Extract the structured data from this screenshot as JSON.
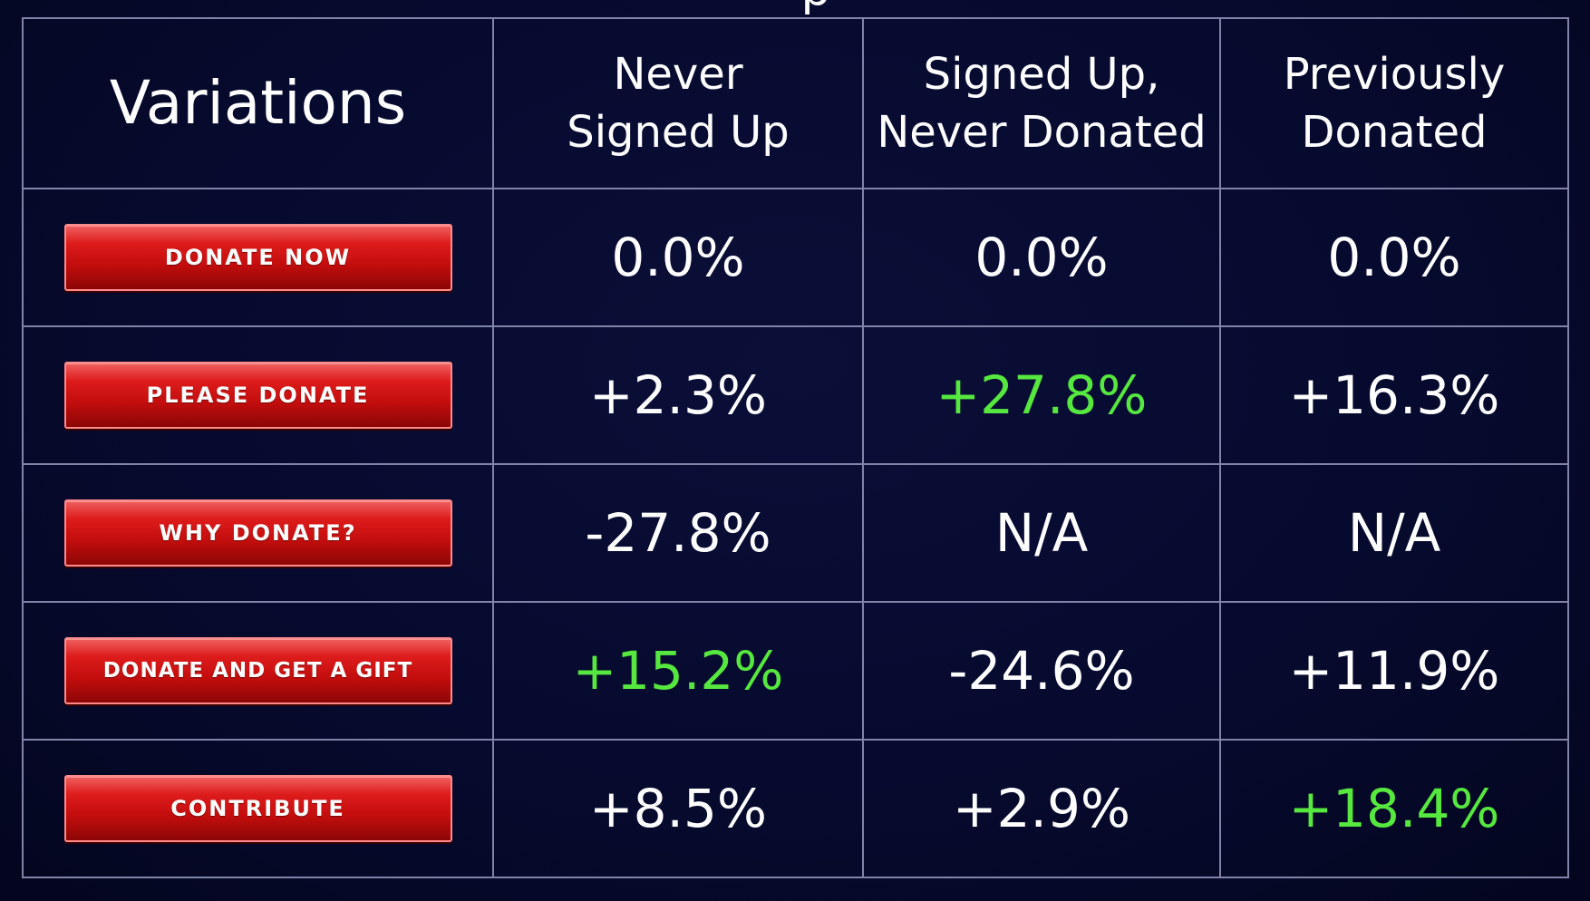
{
  "slide": {
    "title_fragment": "p"
  },
  "table": {
    "header": {
      "variations": "Variations",
      "segments": [
        {
          "line1": "Never",
          "line2": "Signed Up"
        },
        {
          "line1": "Signed Up,",
          "line2": "Never Donated"
        },
        {
          "line1": "Previously",
          "line2": "Donated"
        }
      ]
    },
    "rows": [
      {
        "button": "DONATE NOW",
        "values": [
          {
            "text": "0.0%",
            "highlight": false
          },
          {
            "text": "0.0%",
            "highlight": false
          },
          {
            "text": "0.0%",
            "highlight": false
          }
        ]
      },
      {
        "button": "PLEASE DONATE",
        "values": [
          {
            "text": "+2.3%",
            "highlight": false
          },
          {
            "text": "+27.8%",
            "highlight": true
          },
          {
            "text": "+16.3%",
            "highlight": false
          }
        ]
      },
      {
        "button": "WHY DONATE?",
        "values": [
          {
            "text": "-27.8%",
            "highlight": false
          },
          {
            "text": "N/A",
            "highlight": false
          },
          {
            "text": "N/A",
            "highlight": false
          }
        ]
      },
      {
        "button": "DONATE AND GET A GIFT",
        "values": [
          {
            "text": "+15.2%",
            "highlight": true
          },
          {
            "text": "-24.6%",
            "highlight": false
          },
          {
            "text": "+11.9%",
            "highlight": false
          }
        ]
      },
      {
        "button": "CONTRIBUTE",
        "values": [
          {
            "text": "+8.5%",
            "highlight": false
          },
          {
            "text": "+2.9%",
            "highlight": false
          },
          {
            "text": "+18.4%",
            "highlight": true
          }
        ]
      }
    ]
  },
  "colors": {
    "background": "#060a2e",
    "grid_line": "#7f84a8",
    "text": "#ffffff",
    "highlight_green": "#56e83f",
    "button_red": "#c30d0d"
  }
}
